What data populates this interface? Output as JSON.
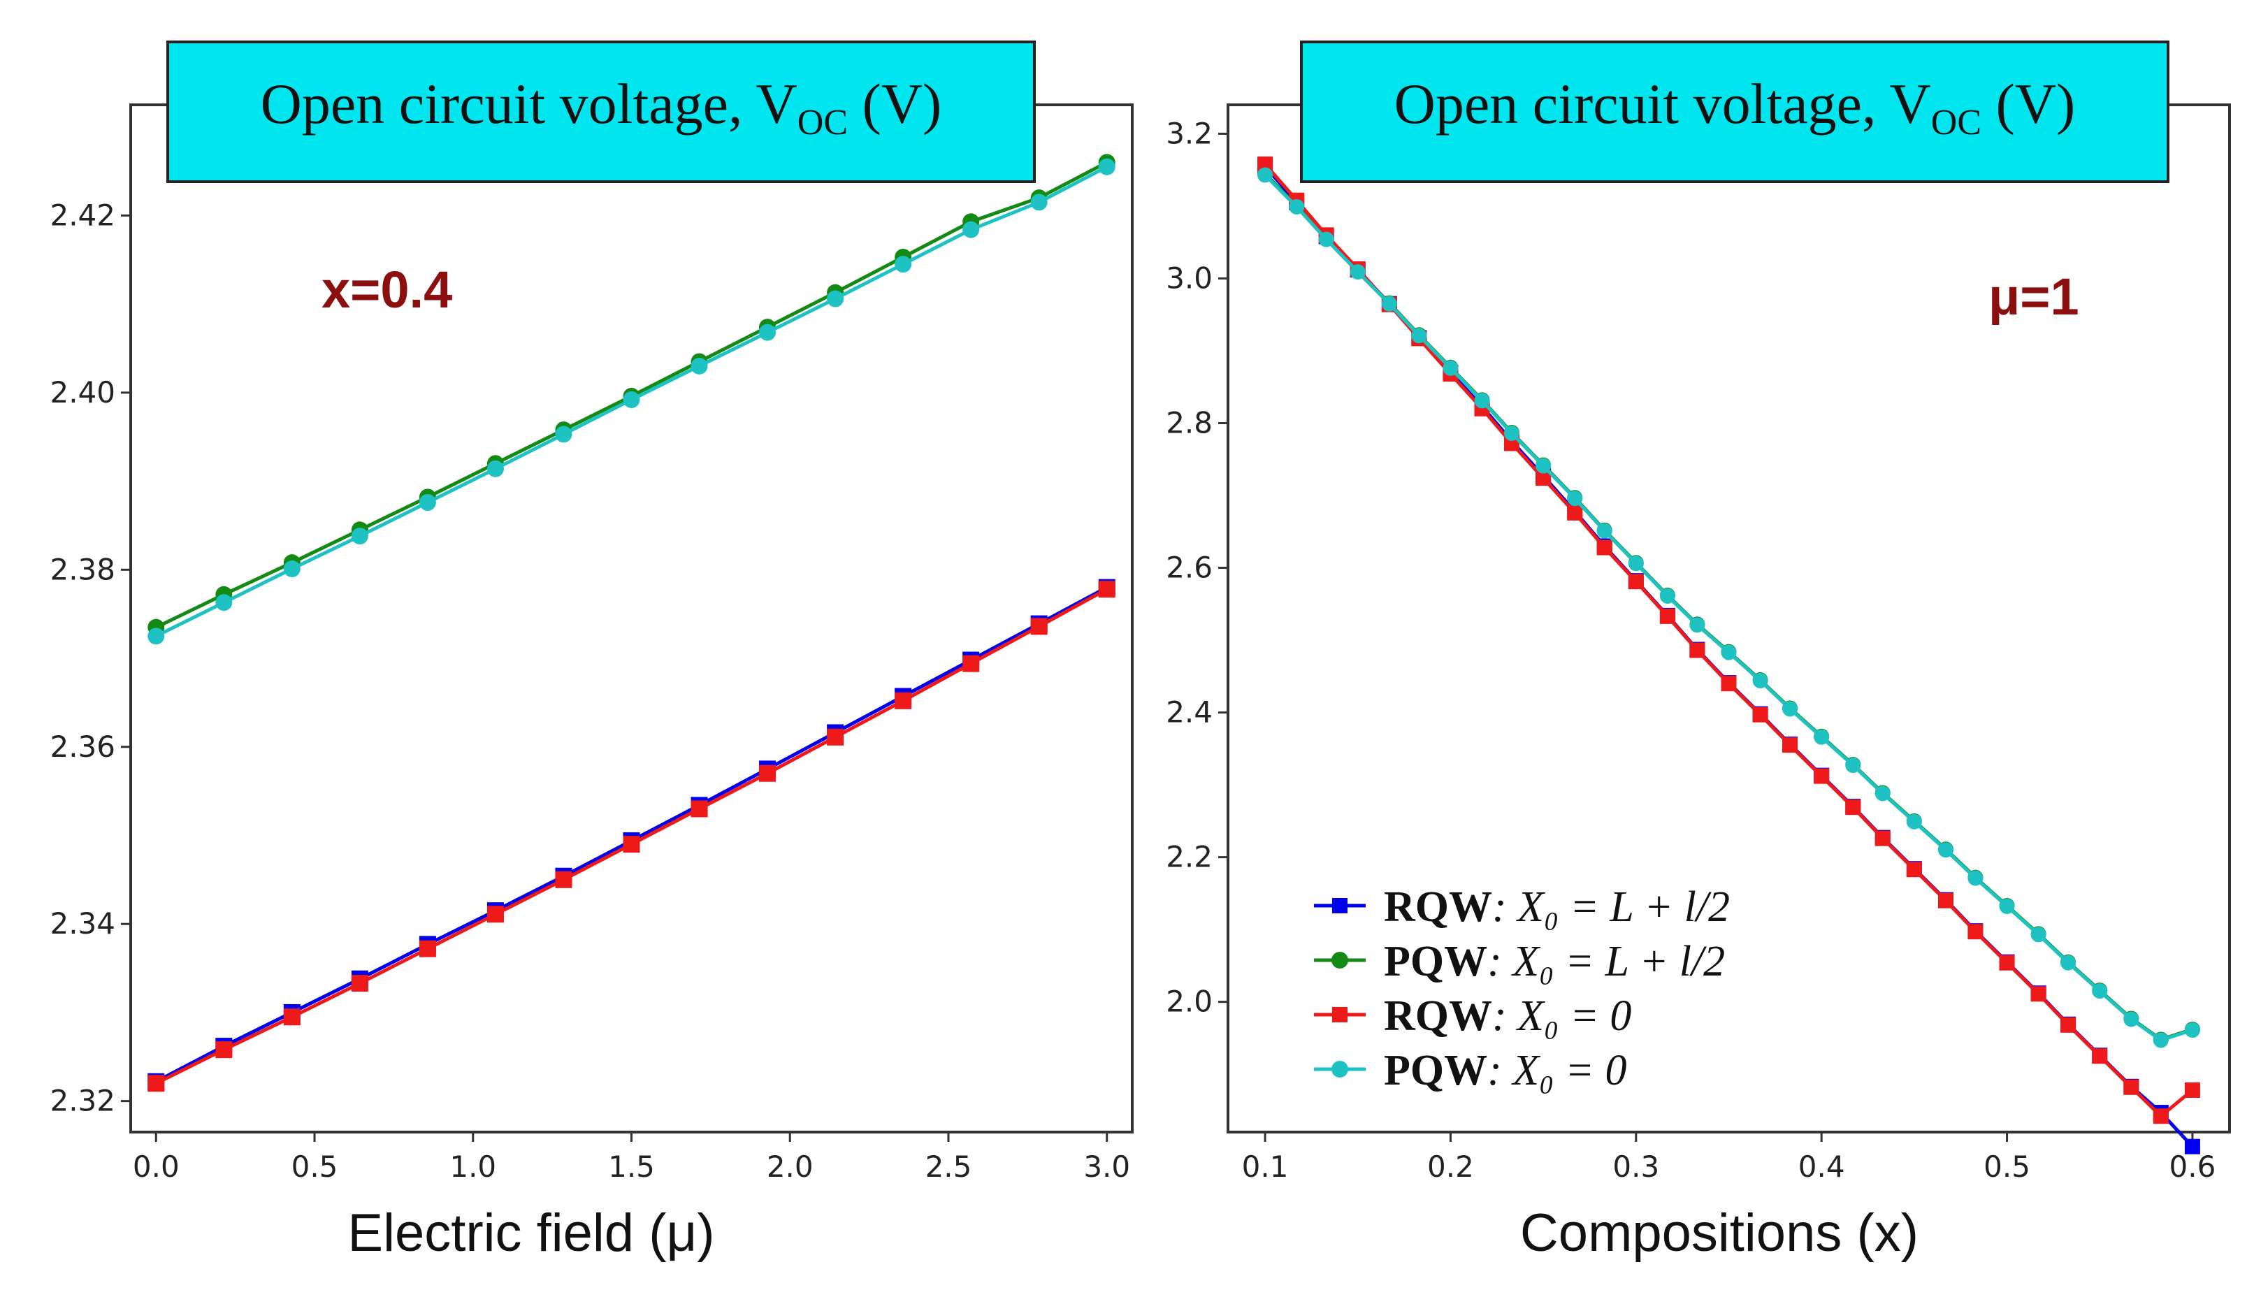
{
  "chart_data": [
    {
      "type": "line",
      "title_main": "Open circuit voltage, V",
      "title_subscript": "OC",
      "title_unit": " (V)",
      "xlabel": "Electric field (μ)",
      "ylabel": "",
      "annotation": "x=0.4",
      "annotation_color": "#8b0f0f",
      "xlim": [
        -0.08,
        3.08
      ],
      "ylim": [
        2.3165,
        2.4325
      ],
      "xticks": [
        0.0,
        0.5,
        1.0,
        1.5,
        2.0,
        2.5,
        3.0
      ],
      "xtick_labels": [
        "0.0",
        "0.5",
        "1.0",
        "1.5",
        "2.0",
        "2.5",
        "3.0"
      ],
      "yticks": [
        2.32,
        2.34,
        2.36,
        2.38,
        2.4,
        2.42
      ],
      "ytick_labels": [
        "2.32",
        "2.34",
        "2.36",
        "2.38",
        "2.40",
        "2.42"
      ],
      "x": [
        0.0,
        0.214,
        0.429,
        0.643,
        0.857,
        1.071,
        1.286,
        1.5,
        1.714,
        1.929,
        2.143,
        2.357,
        2.571,
        2.786,
        3.0
      ],
      "series": [
        {
          "name": "RQW: X0 = L + l/2",
          "color": "#0000ee",
          "marker": "square",
          "values": [
            2.3222,
            2.3262,
            2.33,
            2.3338,
            2.3377,
            2.3415,
            2.3454,
            2.3494,
            2.3534,
            2.3575,
            2.3616,
            2.3657,
            2.3698,
            2.3739,
            2.378
          ]
        },
        {
          "name": "PQW: X0 = L + l/2",
          "color": "#138a13",
          "marker": "circle",
          "values": [
            2.3735,
            2.3772,
            2.3808,
            2.3845,
            2.3882,
            2.392,
            2.3958,
            2.3996,
            2.4035,
            2.4074,
            2.4113,
            2.4153,
            2.4193,
            2.422,
            2.426
          ]
        },
        {
          "name": "RQW: X0 = 0",
          "color": "#ee1a1a",
          "marker": "square",
          "values": [
            2.322,
            2.3258,
            2.3295,
            2.3333,
            2.3372,
            2.3411,
            2.345,
            2.349,
            2.353,
            2.357,
            2.3611,
            2.3652,
            2.3694,
            2.3736,
            2.3778
          ]
        },
        {
          "name": "PQW: X0 = 0",
          "color": "#1fc2c2",
          "marker": "circle",
          "values": [
            2.3725,
            2.3763,
            2.3801,
            2.3838,
            2.3876,
            2.3914,
            2.3953,
            2.3992,
            2.403,
            2.4068,
            2.4106,
            2.4145,
            2.4184,
            2.4215,
            2.4255
          ]
        }
      ]
    },
    {
      "type": "line",
      "title_main": "Open circuit voltage, V",
      "title_subscript": "OC",
      "title_unit": " (V)",
      "xlabel": "Compositions (x)",
      "ylabel": "",
      "annotation": "μ=1",
      "annotation_color": "#8b0f0f",
      "xlim": [
        0.08,
        0.62
      ],
      "ylim": [
        1.82,
        3.24
      ],
      "xticks": [
        0.1,
        0.2,
        0.3,
        0.4,
        0.5,
        0.6
      ],
      "xtick_labels": [
        "0.1",
        "0.2",
        "0.3",
        "0.4",
        "0.5",
        "0.6"
      ],
      "yticks": [
        2.0,
        2.2,
        2.4,
        2.6,
        2.8,
        3.0,
        3.2
      ],
      "ytick_labels": [
        "2.0",
        "2.2",
        "2.4",
        "2.6",
        "2.8",
        "3.0",
        "3.2"
      ],
      "x": [
        0.1,
        0.117,
        0.133,
        0.15,
        0.167,
        0.183,
        0.2,
        0.217,
        0.233,
        0.25,
        0.267,
        0.283,
        0.3,
        0.317,
        0.333,
        0.35,
        0.367,
        0.383,
        0.4,
        0.417,
        0.433,
        0.45,
        0.467,
        0.483,
        0.5,
        0.517,
        0.533,
        0.55,
        0.567,
        0.583,
        0.6
      ],
      "series": [
        {
          "name": "RQW: X0 = L + l/2",
          "color": "#0000ee",
          "marker": "square",
          "values": [
            3.155,
            3.105,
            3.058,
            3.012,
            2.965,
            2.918,
            2.87,
            2.823,
            2.775,
            2.727,
            2.678,
            2.63,
            2.582,
            2.534,
            2.487,
            2.441,
            2.398,
            2.356,
            2.313,
            2.27,
            2.227,
            2.184,
            2.141,
            2.098,
            2.055,
            2.012,
            1.969,
            1.926,
            1.883,
            1.847,
            1.8
          ]
        },
        {
          "name": "PQW: X0 = L + l/2",
          "color": "#138a13",
          "marker": "circle",
          "values": [
            3.145,
            3.1,
            3.055,
            3.01,
            2.966,
            2.922,
            2.877,
            2.832,
            2.787,
            2.742,
            2.697,
            2.652,
            2.607,
            2.562,
            2.522,
            2.484,
            2.445,
            2.406,
            2.367,
            2.328,
            2.289,
            2.25,
            2.211,
            2.172,
            2.133,
            2.094,
            2.055,
            2.016,
            1.977,
            1.948,
            1.962
          ]
        },
        {
          "name": "RQW: X0 = 0",
          "color": "#ee1a1a",
          "marker": "square",
          "values": [
            3.158,
            3.108,
            3.06,
            3.013,
            2.964,
            2.917,
            2.868,
            2.82,
            2.772,
            2.724,
            2.676,
            2.628,
            2.581,
            2.533,
            2.486,
            2.44,
            2.397,
            2.355,
            2.312,
            2.269,
            2.226,
            2.183,
            2.14,
            2.097,
            2.054,
            2.011,
            1.968,
            1.925,
            1.882,
            1.842,
            1.878
          ]
        },
        {
          "name": "PQW: X0 = 0",
          "color": "#1fc2c2",
          "marker": "circle",
          "values": [
            3.143,
            3.099,
            3.054,
            3.009,
            2.965,
            2.921,
            2.876,
            2.831,
            2.786,
            2.741,
            2.696,
            2.651,
            2.606,
            2.561,
            2.521,
            2.483,
            2.444,
            2.405,
            2.366,
            2.327,
            2.288,
            2.249,
            2.21,
            2.171,
            2.132,
            2.093,
            2.054,
            2.015,
            1.976,
            1.947,
            1.961
          ]
        }
      ],
      "legend": {
        "position": "lower-left",
        "entries": [
          {
            "bold": "RQW",
            "rest": ": X₀ = L + l/2",
            "color": "#0000ee",
            "marker": "square"
          },
          {
            "bold": "PQW",
            "rest": ": X₀ = L + l/2",
            "color": "#138a13",
            "marker": "circle"
          },
          {
            "bold": "RQW",
            "rest": ": X₀ = 0",
            "color": "#ee1a1a",
            "marker": "square"
          },
          {
            "bold": "PQW",
            "rest": ": X₀ = 0",
            "color": "#1fc2c2",
            "marker": "circle"
          }
        ]
      }
    }
  ],
  "colors": {
    "title_box_fill": "#00e5ee",
    "title_box_border": "#222222",
    "axes_border": "#333333"
  }
}
